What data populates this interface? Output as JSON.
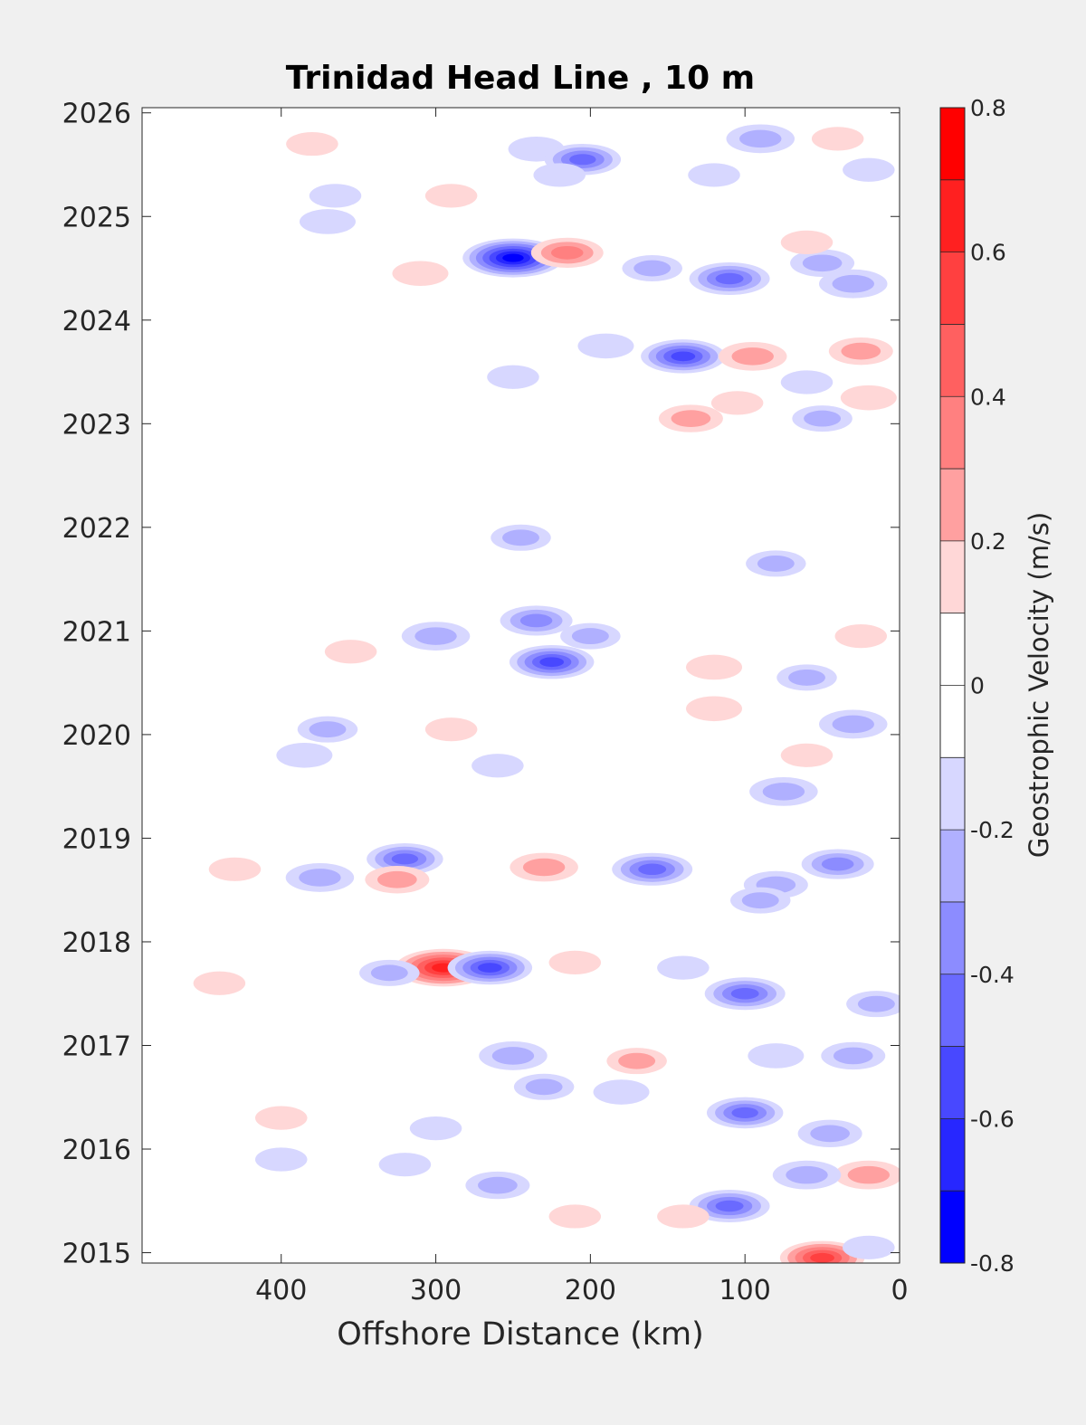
{
  "chart_data": {
    "type": "heatmap",
    "title": "Trinidad Head Line , 10 m",
    "xlabel": "Offshore Distance (km)",
    "ylabel": "",
    "xlim": [
      490,
      0
    ],
    "ylim": [
      2014.9,
      2026.05
    ],
    "x_ticks": [
      400,
      300,
      200,
      100,
      0
    ],
    "y_ticks": [
      2015,
      2016,
      2017,
      2018,
      2019,
      2020,
      2021,
      2022,
      2023,
      2024,
      2025,
      2026
    ],
    "grid": false,
    "colorbar": {
      "label": "Geostrophic Velocity (m/s)",
      "range": [
        -0.8,
        0.8
      ],
      "ticks": [
        0.8,
        0.6,
        0.4,
        0.2,
        0,
        -0.2,
        -0.4,
        -0.6,
        -0.8
      ],
      "levels": [
        {
          "min": 0.7,
          "max": 0.8,
          "color": "#ff0000"
        },
        {
          "min": 0.6,
          "max": 0.7,
          "color": "#ff2020"
        },
        {
          "min": 0.5,
          "max": 0.6,
          "color": "#ff4040"
        },
        {
          "min": 0.4,
          "max": 0.5,
          "color": "#ff6060"
        },
        {
          "min": 0.3,
          "max": 0.4,
          "color": "#ff8080"
        },
        {
          "min": 0.2,
          "max": 0.3,
          "color": "#ffa0a0"
        },
        {
          "min": 0.1,
          "max": 0.2,
          "color": "#ffd7d7"
        },
        {
          "min": 0.0,
          "max": 0.1,
          "color": "#ffffff"
        },
        {
          "min": -0.1,
          "max": 0.0,
          "color": "#ffffff"
        },
        {
          "min": -0.2,
          "max": -0.1,
          "color": "#d7d7ff"
        },
        {
          "min": -0.3,
          "max": -0.2,
          "color": "#b0b0ff"
        },
        {
          "min": -0.4,
          "max": -0.3,
          "color": "#8c8cff"
        },
        {
          "min": -0.5,
          "max": -0.4,
          "color": "#6a6aff"
        },
        {
          "min": -0.6,
          "max": -0.5,
          "color": "#4848ff"
        },
        {
          "min": -0.7,
          "max": -0.6,
          "color": "#2727ff"
        },
        {
          "min": -0.8,
          "max": -0.7,
          "color": "#0000ff"
        }
      ]
    },
    "features": [
      {
        "x": 380,
        "y": 2025.7,
        "v": 0.15
      },
      {
        "x": 235,
        "y": 2025.65,
        "v": -0.2
      },
      {
        "x": 205,
        "y": 2025.55,
        "v": -0.45
      },
      {
        "x": 90,
        "y": 2025.75,
        "v": -0.35
      },
      {
        "x": 40,
        "y": 2025.75,
        "v": 0.15
      },
      {
        "x": 20,
        "y": 2025.45,
        "v": -0.15
      },
      {
        "x": 120,
        "y": 2025.4,
        "v": -0.15
      },
      {
        "x": 220,
        "y": 2025.4,
        "v": -0.15
      },
      {
        "x": 365,
        "y": 2025.2,
        "v": -0.15
      },
      {
        "x": 290,
        "y": 2025.2,
        "v": 0.15
      },
      {
        "x": 370,
        "y": 2024.95,
        "v": -0.2
      },
      {
        "x": 250,
        "y": 2024.6,
        "v": -0.75
      },
      {
        "x": 215,
        "y": 2024.65,
        "v": 0.4
      },
      {
        "x": 310,
        "y": 2024.45,
        "v": 0.2
      },
      {
        "x": 160,
        "y": 2024.5,
        "v": -0.25
      },
      {
        "x": 110,
        "y": 2024.4,
        "v": -0.5
      },
      {
        "x": 50,
        "y": 2024.55,
        "v": -0.3
      },
      {
        "x": 30,
        "y": 2024.35,
        "v": -0.35
      },
      {
        "x": 60,
        "y": 2024.75,
        "v": 0.15
      },
      {
        "x": 140,
        "y": 2023.65,
        "v": -0.55
      },
      {
        "x": 95,
        "y": 2023.65,
        "v": 0.35
      },
      {
        "x": 25,
        "y": 2023.7,
        "v": 0.3
      },
      {
        "x": 190,
        "y": 2023.75,
        "v": -0.2
      },
      {
        "x": 250,
        "y": 2023.45,
        "v": -0.15
      },
      {
        "x": 60,
        "y": 2023.4,
        "v": -0.15
      },
      {
        "x": 105,
        "y": 2023.2,
        "v": 0.15
      },
      {
        "x": 135,
        "y": 2023.05,
        "v": 0.3
      },
      {
        "x": 20,
        "y": 2023.25,
        "v": 0.2
      },
      {
        "x": 50,
        "y": 2023.05,
        "v": -0.25
      },
      {
        "x": 245,
        "y": 2021.9,
        "v": -0.25
      },
      {
        "x": 80,
        "y": 2021.65,
        "v": -0.25
      },
      {
        "x": 235,
        "y": 2021.1,
        "v": -0.4
      },
      {
        "x": 300,
        "y": 2020.95,
        "v": -0.35
      },
      {
        "x": 225,
        "y": 2020.7,
        "v": -0.55
      },
      {
        "x": 200,
        "y": 2020.95,
        "v": -0.25
      },
      {
        "x": 355,
        "y": 2020.8,
        "v": 0.15
      },
      {
        "x": 120,
        "y": 2020.65,
        "v": 0.2
      },
      {
        "x": 25,
        "y": 2020.95,
        "v": 0.15
      },
      {
        "x": 60,
        "y": 2020.55,
        "v": -0.25
      },
      {
        "x": 30,
        "y": 2020.1,
        "v": -0.35
      },
      {
        "x": 120,
        "y": 2020.25,
        "v": 0.2
      },
      {
        "x": 370,
        "y": 2020.05,
        "v": -0.25
      },
      {
        "x": 385,
        "y": 2019.8,
        "v": -0.2
      },
      {
        "x": 290,
        "y": 2020.05,
        "v": 0.15
      },
      {
        "x": 260,
        "y": 2019.7,
        "v": -0.15
      },
      {
        "x": 75,
        "y": 2019.45,
        "v": -0.35
      },
      {
        "x": 60,
        "y": 2019.8,
        "v": 0.15
      },
      {
        "x": 160,
        "y": 2018.7,
        "v": -0.5
      },
      {
        "x": 320,
        "y": 2018.8,
        "v": -0.45
      },
      {
        "x": 230,
        "y": 2018.72,
        "v": 0.35
      },
      {
        "x": 430,
        "y": 2018.7,
        "v": 0.15
      },
      {
        "x": 375,
        "y": 2018.62,
        "v": -0.35
      },
      {
        "x": 325,
        "y": 2018.6,
        "v": 0.3
      },
      {
        "x": 40,
        "y": 2018.75,
        "v": -0.4
      },
      {
        "x": 80,
        "y": 2018.55,
        "v": -0.3
      },
      {
        "x": 90,
        "y": 2018.4,
        "v": -0.25
      },
      {
        "x": 295,
        "y": 2017.75,
        "v": 0.7
      },
      {
        "x": 265,
        "y": 2017.75,
        "v": -0.55
      },
      {
        "x": 330,
        "y": 2017.7,
        "v": -0.25
      },
      {
        "x": 210,
        "y": 2017.8,
        "v": 0.15
      },
      {
        "x": 100,
        "y": 2017.5,
        "v": -0.5
      },
      {
        "x": 140,
        "y": 2017.75,
        "v": -0.15
      },
      {
        "x": 440,
        "y": 2017.6,
        "v": 0.15
      },
      {
        "x": 15,
        "y": 2017.4,
        "v": -0.25
      },
      {
        "x": 250,
        "y": 2016.9,
        "v": -0.35
      },
      {
        "x": 170,
        "y": 2016.85,
        "v": 0.25
      },
      {
        "x": 30,
        "y": 2016.9,
        "v": -0.3
      },
      {
        "x": 80,
        "y": 2016.9,
        "v": -0.2
      },
      {
        "x": 230,
        "y": 2016.6,
        "v": -0.25
      },
      {
        "x": 180,
        "y": 2016.55,
        "v": -0.2
      },
      {
        "x": 100,
        "y": 2016.35,
        "v": -0.45
      },
      {
        "x": 45,
        "y": 2016.15,
        "v": -0.3
      },
      {
        "x": 20,
        "y": 2015.75,
        "v": 0.35
      },
      {
        "x": 60,
        "y": 2015.75,
        "v": -0.35
      },
      {
        "x": 110,
        "y": 2015.45,
        "v": -0.5
      },
      {
        "x": 260,
        "y": 2015.65,
        "v": -0.3
      },
      {
        "x": 320,
        "y": 2015.85,
        "v": -0.15
      },
      {
        "x": 400,
        "y": 2015.9,
        "v": -0.15
      },
      {
        "x": 50,
        "y": 2014.95,
        "v": 0.55
      },
      {
        "x": 210,
        "y": 2015.35,
        "v": 0.15
      },
      {
        "x": 140,
        "y": 2015.35,
        "v": 0.15
      },
      {
        "x": 20,
        "y": 2015.05,
        "v": -0.15
      },
      {
        "x": 400,
        "y": 2016.3,
        "v": 0.15
      },
      {
        "x": 300,
        "y": 2016.2,
        "v": -0.15
      }
    ]
  }
}
